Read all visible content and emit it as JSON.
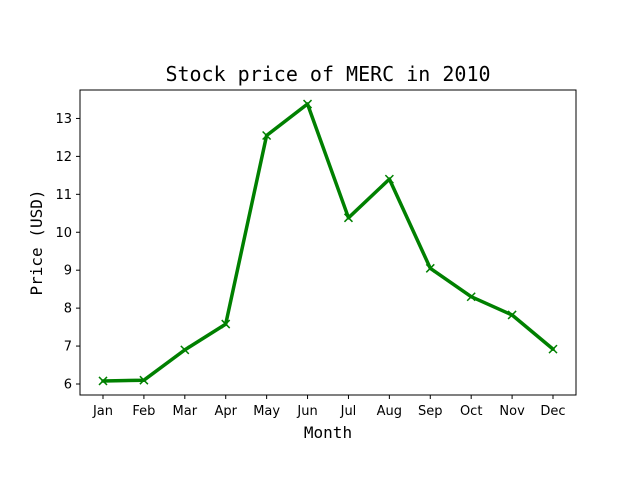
{
  "chart_data": {
    "type": "line",
    "title": "Stock price of MERC in 2010",
    "xlabel": "Month",
    "ylabel": "Price (USD)",
    "categories": [
      "Jan",
      "Feb",
      "Mar",
      "Apr",
      "May",
      "Jun",
      "Jul",
      "Aug",
      "Sep",
      "Oct",
      "Nov",
      "Dec"
    ],
    "series": [
      {
        "values": [
          6.08,
          6.1,
          6.9,
          7.58,
          12.55,
          13.38,
          10.38,
          11.4,
          9.05,
          8.3,
          7.82,
          6.92
        ],
        "color": "#008000",
        "marker": "x"
      }
    ],
    "yticks": [
      6,
      7,
      8,
      9,
      10,
      11,
      12,
      13
    ],
    "ylim": [
      5.71,
      13.75
    ],
    "grid": false,
    "legend": false
  }
}
